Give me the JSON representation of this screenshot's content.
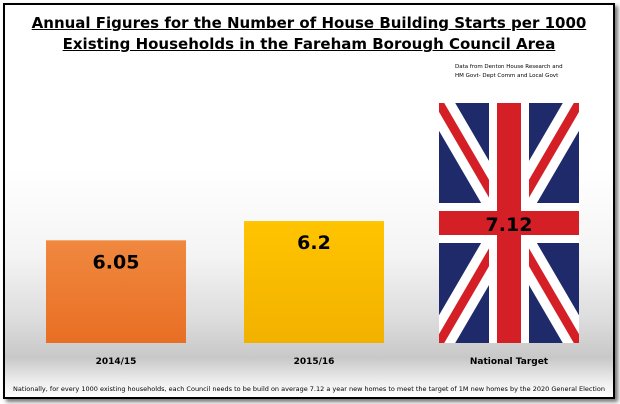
{
  "title": {
    "line1": "Annual Figures for the Number of House Building Starts per 1000",
    "line2": "Existing Households in the Fareham Borough Council Area"
  },
  "source": {
    "line1": "Data from Denton House Research and",
    "line2": "HM Govt- Dept Comm and Local Govt"
  },
  "footnote": "Nationally, for every 1000  existing households, each Council needs to be build on average 7.12 a year new homes to meet the target of 1M new homes by the 2020 General Election",
  "colors": {
    "bar_2014": "#ee7a2f",
    "bar_2015": "#f5b800",
    "flag_blue": "#1f2a6b",
    "flag_red": "#d41f26",
    "flag_white": "#ffffff"
  },
  "chart_data": {
    "type": "bar",
    "categories": [
      "2014/15",
      "2015/16",
      "National Target"
    ],
    "values": [
      6.05,
      6.2,
      7.12
    ],
    "value_labels": [
      "6.05",
      "6.2",
      "7.12"
    ],
    "bar_fills": [
      "#ee7a2f",
      "#f5b800",
      "union-jack-flag"
    ],
    "ylim": [
      5.25,
      7.12
    ],
    "grid": false,
    "legend": "none"
  }
}
